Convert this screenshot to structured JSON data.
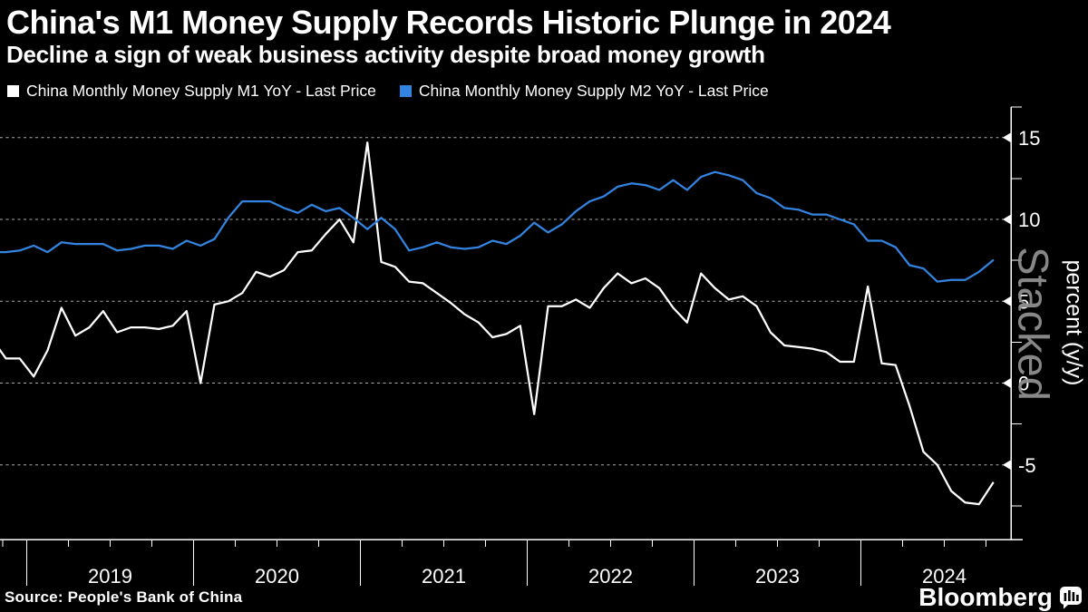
{
  "header": {
    "title": "China's M1 Money Supply Records Historic Plunge in 2024",
    "subtitle": "Decline a sign of weak business activity despite broad money growth"
  },
  "legend": [
    {
      "label": "China Monthly Money Supply M1 YoY - Last Price",
      "color": "#ffffff"
    },
    {
      "label": "China Monthly Money Supply M2 YoY - Last Price",
      "color": "#3384e0"
    }
  ],
  "footer": {
    "source": "Source: People's Bank of China",
    "brand": "Bloomberg"
  },
  "chart_data": {
    "type": "line",
    "title": "China's M1 Money Supply Records Historic Plunge in 2024",
    "xlabel": "",
    "ylabel": "percent (y/y)",
    "watermark": "Stacked",
    "grid": "horizontal-dashed",
    "legend_position": "top-left",
    "ylim": [
      -9.5,
      16.9
    ],
    "y_ticks": [
      15,
      10,
      5,
      0,
      -5
    ],
    "y_minor_ticks": [
      12.5,
      7.5,
      2.5,
      -2.5,
      -7.5
    ],
    "x_year_labels": [
      "2019",
      "2020",
      "2021",
      "2022",
      "2023",
      "2024"
    ],
    "frequency": "monthly",
    "start": "2018-10",
    "end": "2024-10",
    "series": [
      {
        "name": "China Monthly Money Supply M1 YoY - Last Price",
        "color": "#ffffff",
        "values": [
          2.7,
          1.5,
          1.5,
          0.4,
          2,
          4.6,
          2.9,
          3.4,
          4.4,
          3.1,
          3.4,
          3.4,
          3.3,
          3.5,
          4.4,
          0,
          4.8,
          5,
          5.5,
          6.8,
          6.5,
          6.9,
          8,
          8.1,
          9.1,
          10,
          8.6,
          14.7,
          7.4,
          7.1,
          6.2,
          6.1,
          5.5,
          4.9,
          4.2,
          3.7,
          2.8,
          3,
          3.5,
          -1.9,
          4.7,
          4.7,
          5.1,
          4.6,
          5.8,
          6.7,
          6.1,
          6.4,
          5.8,
          4.6,
          3.7,
          6.7,
          5.8,
          5.1,
          5.3,
          4.7,
          3.1,
          2.3,
          2.2,
          2.1,
          1.9,
          1.3,
          1.3,
          5.9,
          1.2,
          1.1,
          -1.4,
          -4.2,
          -5,
          -6.6,
          -7.3,
          -7.4,
          -6.1
        ]
      },
      {
        "name": "China Monthly Money Supply M2 YoY - Last Price",
        "color": "#3384e0",
        "values": [
          8,
          8,
          8.1,
          8.4,
          8,
          8.6,
          8.5,
          8.5,
          8.5,
          8.1,
          8.2,
          8.4,
          8.4,
          8.2,
          8.7,
          8.4,
          8.8,
          10.1,
          11.1,
          11.1,
          11.1,
          10.7,
          10.4,
          10.9,
          10.5,
          10.7,
          10.1,
          9.4,
          10.1,
          9.4,
          8.1,
          8.3,
          8.6,
          8.3,
          8.2,
          8.3,
          8.7,
          8.5,
          9,
          9.8,
          9.2,
          9.7,
          10.5,
          11.1,
          11.4,
          12,
          12.2,
          12.1,
          11.8,
          12.4,
          11.8,
          12.6,
          12.9,
          12.7,
          12.4,
          11.6,
          11.3,
          10.7,
          10.6,
          10.3,
          10.3,
          10,
          9.7,
          8.7,
          8.7,
          8.3,
          7.2,
          7,
          6.2,
          6.3,
          6.3,
          6.8,
          7.5
        ]
      }
    ]
  }
}
